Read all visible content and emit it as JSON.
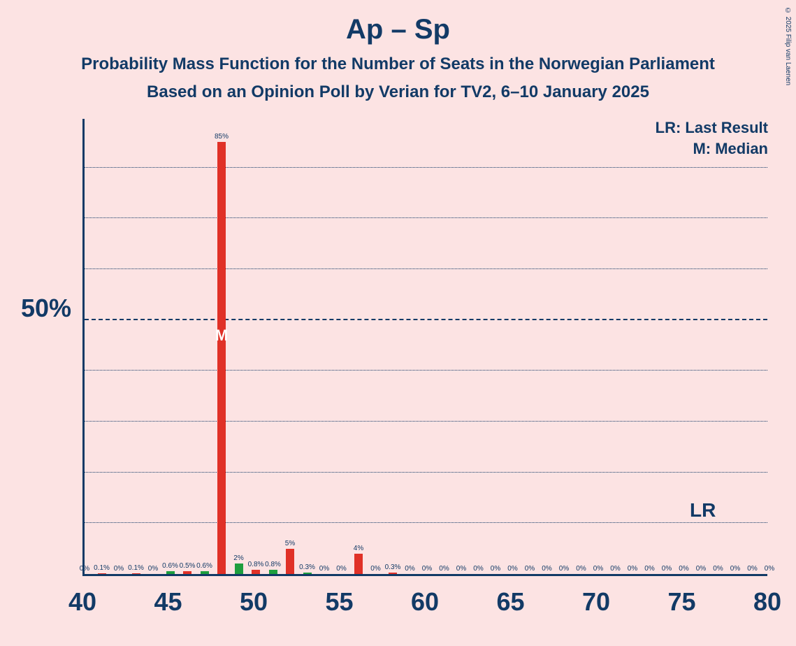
{
  "title": "Ap – Sp",
  "subtitle1": "Probability Mass Function for the Number of Seats in the Norwegian Parliament",
  "subtitle2": "Based on an Opinion Poll by Verian for TV2, 6–10 January 2025",
  "copyright": "© 2025 Filip van Laenen",
  "legend": {
    "lr": "LR: Last Result",
    "m": "M: Median"
  },
  "ylabel_50": "50%",
  "lr_marker": "LR",
  "m_marker": "M",
  "chart": {
    "type": "bar",
    "background_color": "#fce3e3",
    "axis_color": "#123a66",
    "text_color": "#123a66",
    "title_fontsize": 40,
    "subtitle_fontsize": 24,
    "axis_label_fontsize": 36,
    "bar_label_fontsize": 10,
    "x_min": 40,
    "x_max": 80,
    "x_tick_step": 5,
    "x_ticks": [
      "40",
      "45",
      "50",
      "55",
      "60",
      "65",
      "70",
      "75",
      "80"
    ],
    "y_max_pct": 90,
    "y_major_lines": [
      50
    ],
    "y_minor_lines": [
      10,
      20,
      30,
      40,
      60,
      70,
      80
    ],
    "grid_major_style": "dashed",
    "grid_minor_style": "dotted",
    "colors": {
      "green": "#1e9e3e",
      "red": "#e03127"
    },
    "lr_x": 76,
    "median_x": 48,
    "bars": [
      {
        "x": 40,
        "v": 0,
        "c": "green",
        "l": "0%"
      },
      {
        "x": 41,
        "v": 0.1,
        "c": "red",
        "l": "0.1%"
      },
      {
        "x": 42,
        "v": 0,
        "c": "green",
        "l": "0%"
      },
      {
        "x": 43,
        "v": 0.1,
        "c": "red",
        "l": "0.1%"
      },
      {
        "x": 44,
        "v": 0,
        "c": "red",
        "l": "0%"
      },
      {
        "x": 45,
        "v": 0.6,
        "c": "green",
        "l": "0.6%"
      },
      {
        "x": 46,
        "v": 0.5,
        "c": "red",
        "l": "0.5%"
      },
      {
        "x": 47,
        "v": 0.6,
        "c": "green",
        "l": "0.6%"
      },
      {
        "x": 48,
        "v": 85,
        "c": "red",
        "l": "85%"
      },
      {
        "x": 49,
        "v": 2,
        "c": "green",
        "l": "2%"
      },
      {
        "x": 50,
        "v": 0.8,
        "c": "red",
        "l": "0.8%"
      },
      {
        "x": 51,
        "v": 0.8,
        "c": "green",
        "l": "0.8%"
      },
      {
        "x": 52,
        "v": 5,
        "c": "red",
        "l": "5%"
      },
      {
        "x": 53,
        "v": 0.3,
        "c": "green",
        "l": "0.3%"
      },
      {
        "x": 54,
        "v": 0,
        "c": "red",
        "l": "0%"
      },
      {
        "x": 55,
        "v": 0,
        "c": "green",
        "l": "0%"
      },
      {
        "x": 56,
        "v": 4,
        "c": "red",
        "l": "4%"
      },
      {
        "x": 57,
        "v": 0,
        "c": "green",
        "l": "0%"
      },
      {
        "x": 58,
        "v": 0.3,
        "c": "red",
        "l": "0.3%"
      },
      {
        "x": 59,
        "v": 0,
        "c": "green",
        "l": "0%"
      },
      {
        "x": 60,
        "v": 0,
        "c": "red",
        "l": "0%"
      },
      {
        "x": 61,
        "v": 0,
        "c": "green",
        "l": "0%"
      },
      {
        "x": 62,
        "v": 0,
        "c": "red",
        "l": "0%"
      },
      {
        "x": 63,
        "v": 0,
        "c": "green",
        "l": "0%"
      },
      {
        "x": 64,
        "v": 0,
        "c": "red",
        "l": "0%"
      },
      {
        "x": 65,
        "v": 0,
        "c": "green",
        "l": "0%"
      },
      {
        "x": 66,
        "v": 0,
        "c": "red",
        "l": "0%"
      },
      {
        "x": 67,
        "v": 0,
        "c": "green",
        "l": "0%"
      },
      {
        "x": 68,
        "v": 0,
        "c": "red",
        "l": "0%"
      },
      {
        "x": 69,
        "v": 0,
        "c": "green",
        "l": "0%"
      },
      {
        "x": 70,
        "v": 0,
        "c": "red",
        "l": "0%"
      },
      {
        "x": 71,
        "v": 0,
        "c": "green",
        "l": "0%"
      },
      {
        "x": 72,
        "v": 0,
        "c": "red",
        "l": "0%"
      },
      {
        "x": 73,
        "v": 0,
        "c": "green",
        "l": "0%"
      },
      {
        "x": 74,
        "v": 0,
        "c": "red",
        "l": "0%"
      },
      {
        "x": 75,
        "v": 0,
        "c": "green",
        "l": "0%"
      },
      {
        "x": 76,
        "v": 0,
        "c": "red",
        "l": "0%"
      },
      {
        "x": 77,
        "v": 0,
        "c": "green",
        "l": "0%"
      },
      {
        "x": 78,
        "v": 0,
        "c": "red",
        "l": "0%"
      },
      {
        "x": 79,
        "v": 0,
        "c": "green",
        "l": "0%"
      },
      {
        "x": 80,
        "v": 0,
        "c": "red",
        "l": "0%"
      }
    ]
  }
}
